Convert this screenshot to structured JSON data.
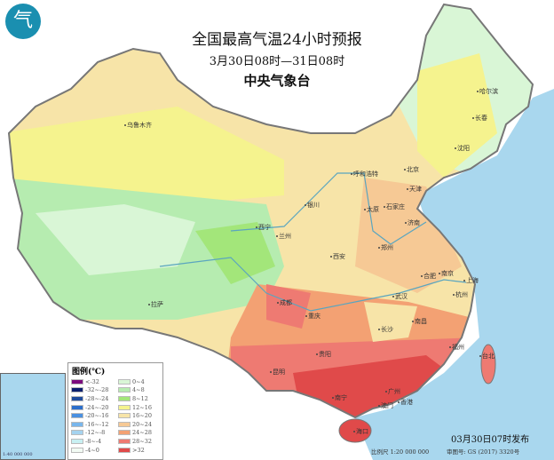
{
  "header": {
    "title": "全国最高气温24小时预报",
    "period": "3月30日08时—31日08时",
    "issuer": "中央气象台",
    "logo_icon": "cma-logo-icon"
  },
  "cities": [
    "乌鲁木齐",
    "哈尔滨",
    "长春",
    "沈阳",
    "呼和浩特",
    "北京",
    "天津",
    "银川",
    "太原",
    "石家庄",
    "济南",
    "西宁",
    "兰州",
    "郑州",
    "西安",
    "合肥",
    "南京",
    "上海",
    "杭州",
    "成都",
    "武汉",
    "重庆",
    "拉萨",
    "长沙",
    "南昌",
    "贵阳",
    "福州",
    "台北",
    "昆明",
    "南宁",
    "广州",
    "香港",
    "澳门",
    "海口"
  ],
  "legend": {
    "title": "图例(℃)",
    "items": [
      {
        "label": "<-32",
        "color": "#7b0a7d"
      },
      {
        "label": "-32~-28",
        "color": "#0b1f6e"
      },
      {
        "label": "-28~-24",
        "color": "#1f4c9c"
      },
      {
        "label": "-24~-20",
        "color": "#2c6fcb"
      },
      {
        "label": "-20~-16",
        "color": "#4a90e0"
      },
      {
        "label": "-16~-12",
        "color": "#79b6ec"
      },
      {
        "label": "-12~-8",
        "color": "#a5d3ef"
      },
      {
        "label": "-8~-4",
        "color": "#c8f0f2"
      },
      {
        "label": "-4~0",
        "color": "#f2fbf4"
      },
      {
        "label": "0~4",
        "color": "#d9f6d6"
      },
      {
        "label": "4~8",
        "color": "#b6ecb0"
      },
      {
        "label": "8~12",
        "color": "#a3e67a"
      },
      {
        "label": "12~16",
        "color": "#f5f38e"
      },
      {
        "label": "16~20",
        "color": "#f7e4a8"
      },
      {
        "label": "20~24",
        "color": "#f6c995"
      },
      {
        "label": "24~28",
        "color": "#f3a173"
      },
      {
        "label": "28~32",
        "color": "#ee7a72"
      },
      {
        "label": ">32",
        "color": "#e04a4a"
      }
    ]
  },
  "footer": {
    "published": "03月30日07时发布",
    "scale": "比例尺 1:20 000 000",
    "map_number": "审图号: GS (2017) 3320号",
    "inset_scale": "1:40 000 000"
  },
  "colors": {
    "sea": "#a9d7ee",
    "land_outside": "#ffffff"
  }
}
